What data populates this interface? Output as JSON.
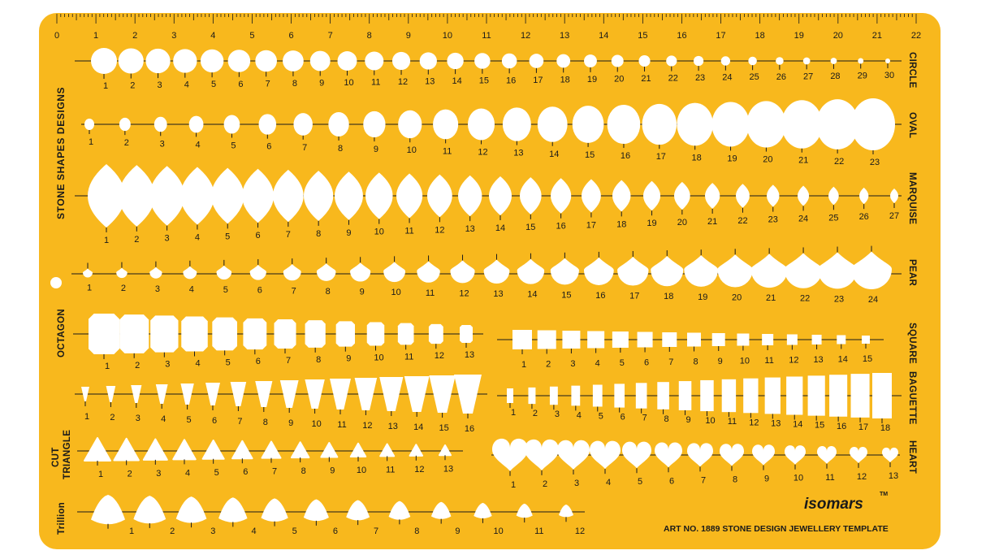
{
  "colors": {
    "plate": "#F8B81D",
    "cutout": "#FFFFFF",
    "ink": "#1A1A1A"
  },
  "ruler": {
    "labels": [
      "0",
      "1",
      "2",
      "3",
      "4",
      "5",
      "6",
      "7",
      "8",
      "9",
      "10",
      "11",
      "12",
      "13",
      "14",
      "15",
      "16",
      "17",
      "18",
      "19",
      "20",
      "21",
      "22"
    ]
  },
  "title": "STONE SHAPES DESIGNS",
  "rows": {
    "circle": {
      "label": "CIRCLE",
      "numbers": [
        "1",
        "2",
        "3",
        "4",
        "5",
        "6",
        "7",
        "8",
        "9",
        "10",
        "11",
        "12",
        "13",
        "14",
        "15",
        "16",
        "17",
        "18",
        "19",
        "20",
        "21",
        "22",
        "23",
        "24",
        "25",
        "26",
        "27",
        "28",
        "29",
        "30"
      ]
    },
    "oval": {
      "label": "OVAL",
      "numbers": [
        "1",
        "2",
        "3",
        "4",
        "5",
        "6",
        "7",
        "8",
        "9",
        "10",
        "11",
        "12",
        "13",
        "14",
        "15",
        "16",
        "17",
        "18",
        "19",
        "20",
        "21",
        "22",
        "23"
      ]
    },
    "marquise": {
      "label": "MARQUISE",
      "numbers": [
        "1",
        "2",
        "3",
        "4",
        "5",
        "6",
        "7",
        "8",
        "9",
        "10",
        "11",
        "12",
        "13",
        "14",
        "15",
        "16",
        "17",
        "18",
        "19",
        "20",
        "21",
        "22",
        "23",
        "24",
        "25",
        "26",
        "27"
      ]
    },
    "pear": {
      "label": "PEAR",
      "numbers": [
        "1",
        "2",
        "3",
        "4",
        "5",
        "6",
        "7",
        "8",
        "9",
        "10",
        "11",
        "12",
        "13",
        "14",
        "15",
        "16",
        "17",
        "18",
        "19",
        "20",
        "21",
        "22",
        "23",
        "24"
      ]
    },
    "octagon": {
      "label": "OCTAGON",
      "numbers": [
        "1",
        "2",
        "3",
        "4",
        "5",
        "6",
        "7",
        "8",
        "9",
        "10",
        "11",
        "12",
        "13"
      ]
    },
    "square": {
      "label": "SQUARE",
      "numbers": [
        "1",
        "2",
        "3",
        "4",
        "5",
        "6",
        "7",
        "8",
        "9",
        "10",
        "11",
        "12",
        "13",
        "14",
        "15"
      ]
    },
    "triangle": {
      "label": "",
      "numbers": [
        "1",
        "2",
        "3",
        "4",
        "5",
        "6",
        "7",
        "8",
        "9",
        "10",
        "11",
        "12",
        "13",
        "14",
        "15",
        "16"
      ]
    },
    "baguette": {
      "label": "BAGUETTE",
      "numbers": [
        "1",
        "2",
        "3",
        "4",
        "5",
        "6",
        "7",
        "8",
        "9",
        "10",
        "11",
        "12",
        "13",
        "14",
        "15",
        "16",
        "17",
        "18"
      ]
    },
    "cut_triangle": {
      "label_line1": "CUT",
      "label_line2": "TRIANGLE",
      "numbers": [
        "1",
        "2",
        "3",
        "4",
        "5",
        "6",
        "7",
        "8",
        "9",
        "10",
        "11",
        "12",
        "13"
      ]
    },
    "heart": {
      "label": "HEART",
      "numbers": [
        "1",
        "2",
        "3",
        "4",
        "5",
        "6",
        "7",
        "8",
        "9",
        "10",
        "11",
        "12",
        "13"
      ]
    },
    "trillion": {
      "label": "Trillion",
      "numbers": [
        "1",
        "2",
        "3",
        "4",
        "5",
        "6",
        "7",
        "8",
        "9",
        "10",
        "11",
        "12"
      ]
    }
  },
  "brand": "isomars",
  "trademark": "TM",
  "art_text": "ART NO. 1889 STONE DESIGN JEWELLERY TEMPLATE"
}
